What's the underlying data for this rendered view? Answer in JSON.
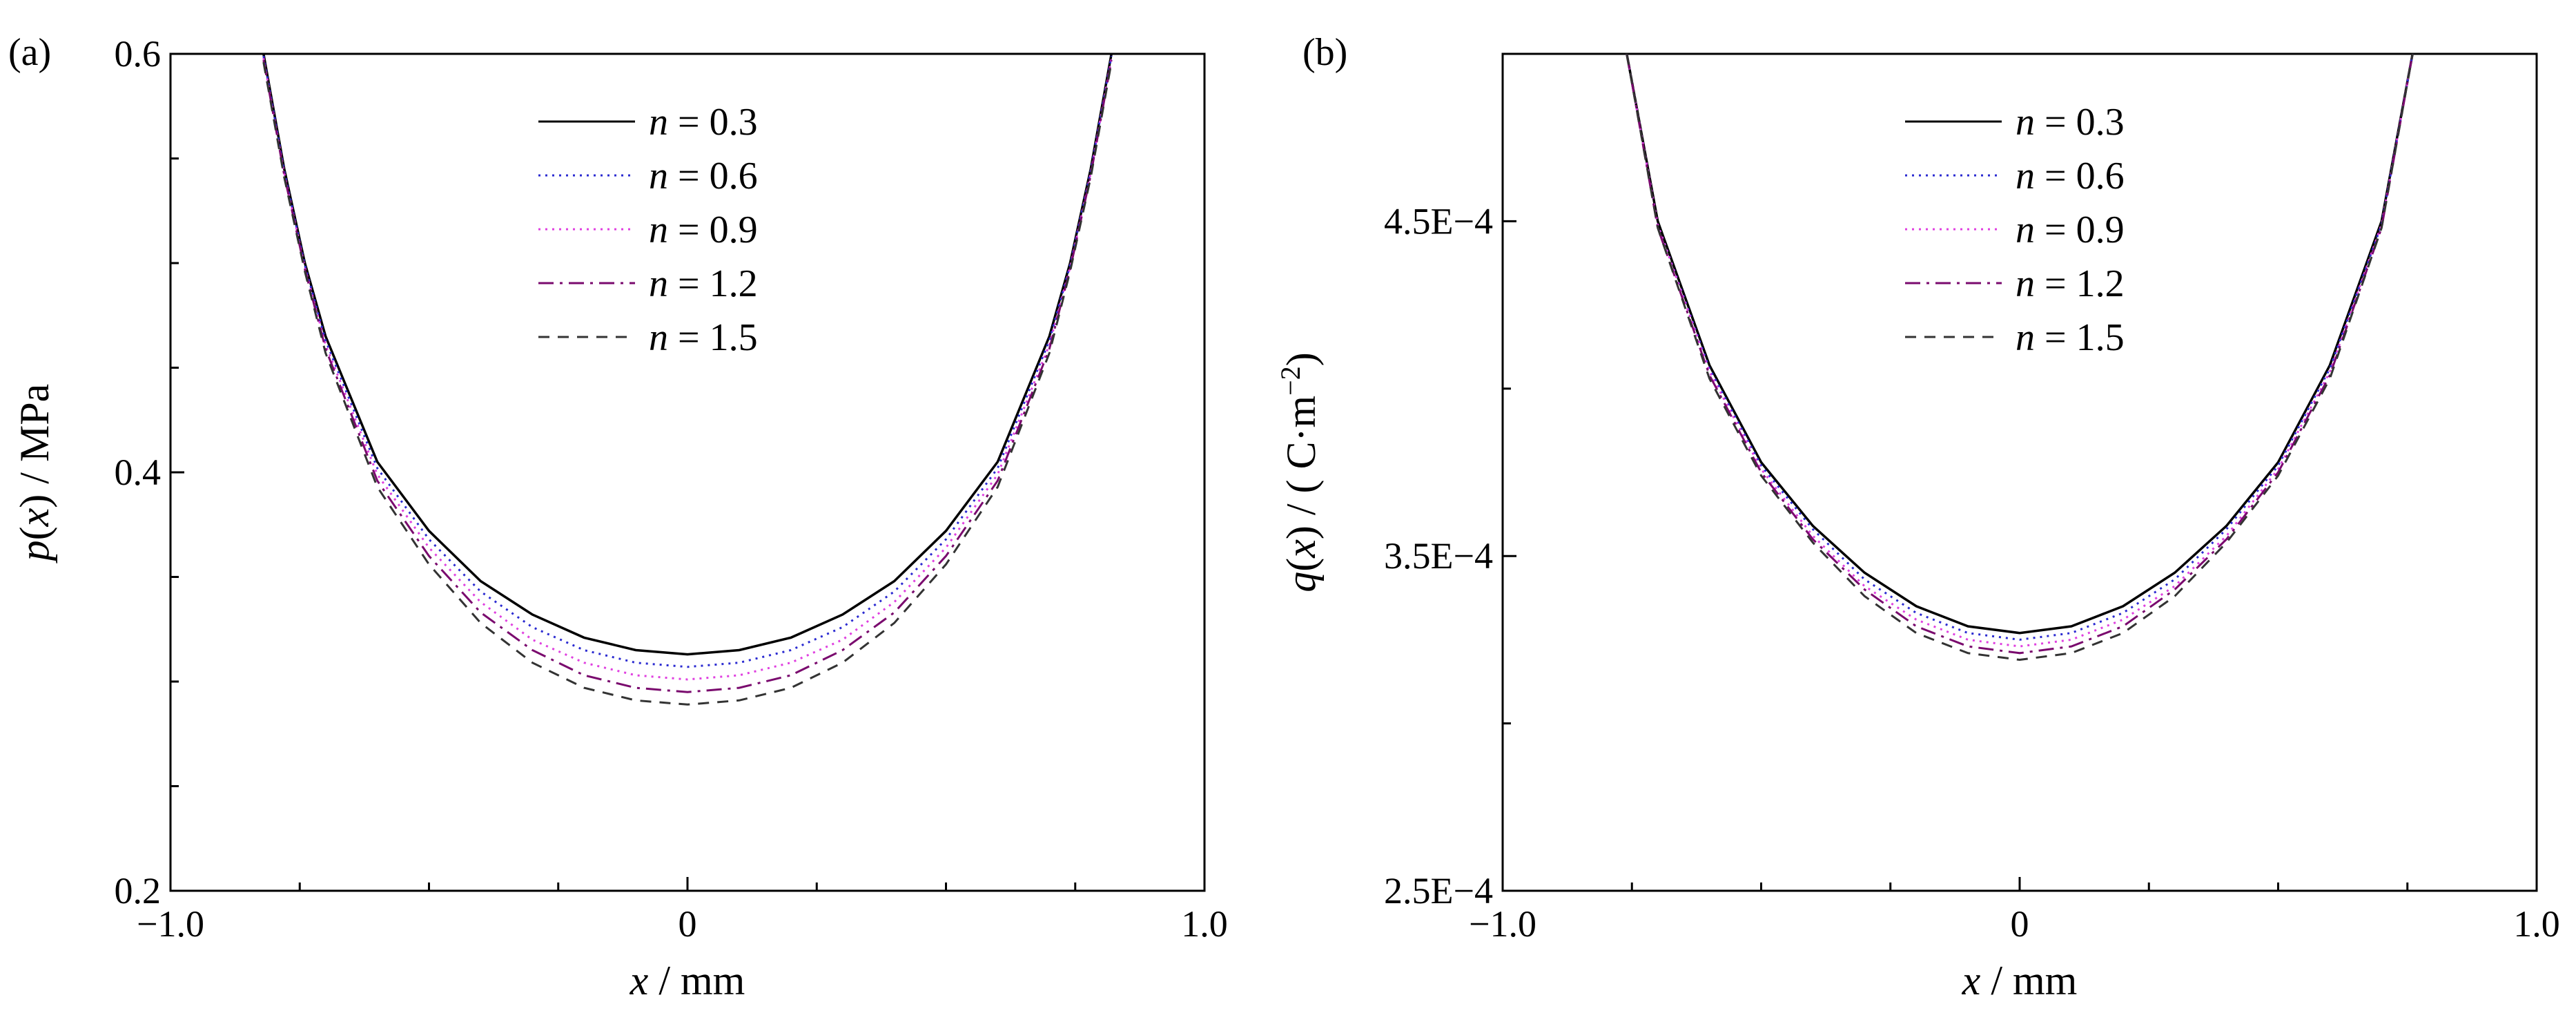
{
  "chart_data": [
    {
      "type": "line",
      "panel_label": "(a)",
      "xlabel": "x / mm",
      "ylabel": "p(x) / MPa",
      "xlim": [
        -1.0,
        1.0
      ],
      "ylim": [
        0.2,
        0.6
      ],
      "x_ticks": [
        "−1.0",
        "0",
        "1.0"
      ],
      "y_ticks": [
        "0.2",
        "0.4",
        "0.6"
      ],
      "grid": false,
      "legend_position": "top-center",
      "x": [
        -0.82,
        -0.78,
        -0.74,
        -0.7,
        -0.6,
        -0.5,
        -0.4,
        -0.3,
        -0.2,
        -0.1,
        0.0,
        0.1,
        0.2,
        0.3,
        0.4,
        0.5,
        0.6,
        0.7,
        0.74,
        0.78,
        0.82
      ],
      "series": [
        {
          "name": "n = 0.3",
          "values": [
            0.6,
            0.545,
            0.5,
            0.465,
            0.405,
            0.372,
            0.348,
            0.332,
            0.321,
            0.315,
            0.313,
            0.315,
            0.321,
            0.332,
            0.348,
            0.372,
            0.405,
            0.465,
            0.5,
            0.545,
            0.6
          ]
        },
        {
          "name": "n = 0.6",
          "values": [
            0.599,
            0.544,
            0.499,
            0.463,
            0.402,
            0.368,
            0.343,
            0.326,
            0.315,
            0.309,
            0.307,
            0.309,
            0.315,
            0.326,
            0.343,
            0.368,
            0.402,
            0.463,
            0.499,
            0.544,
            0.599
          ]
        },
        {
          "name": "n = 0.9",
          "values": [
            0.598,
            0.543,
            0.498,
            0.461,
            0.399,
            0.364,
            0.338,
            0.32,
            0.309,
            0.303,
            0.301,
            0.303,
            0.309,
            0.32,
            0.338,
            0.364,
            0.399,
            0.461,
            0.498,
            0.543,
            0.598
          ]
        },
        {
          "name": "n = 1.2",
          "values": [
            0.597,
            0.542,
            0.497,
            0.459,
            0.396,
            0.36,
            0.333,
            0.315,
            0.303,
            0.297,
            0.295,
            0.297,
            0.303,
            0.315,
            0.333,
            0.36,
            0.396,
            0.459,
            0.497,
            0.542,
            0.597
          ]
        },
        {
          "name": "n = 1.5",
          "values": [
            0.596,
            0.541,
            0.496,
            0.457,
            0.393,
            0.356,
            0.328,
            0.309,
            0.297,
            0.291,
            0.289,
            0.291,
            0.297,
            0.309,
            0.328,
            0.356,
            0.393,
            0.457,
            0.496,
            0.541,
            0.596
          ]
        }
      ]
    },
    {
      "type": "line",
      "panel_label": "(b)",
      "xlabel": "x / mm",
      "ylabel": "q(x) / ( C·m−2)",
      "xlim": [
        -1.0,
        1.0
      ],
      "ylim": [
        0.00025,
        0.0005
      ],
      "x_ticks": [
        "−1.0",
        "0",
        "1.0"
      ],
      "y_ticks": [
        "2.5E−4",
        "3.5E−4",
        "4.5E−4"
      ],
      "grid": false,
      "legend_position": "top-center",
      "x": [
        -0.76,
        -0.7,
        -0.6,
        -0.5,
        -0.4,
        -0.3,
        -0.2,
        -0.1,
        0.0,
        0.1,
        0.2,
        0.3,
        0.4,
        0.5,
        0.6,
        0.7,
        0.76
      ],
      "series": [
        {
          "name": "n = 0.3",
          "values": [
            0.0005,
            0.00045,
            0.000407,
            0.000378,
            0.000359,
            0.000345,
            0.000335,
            0.000329,
            0.000327,
            0.000329,
            0.000335,
            0.000345,
            0.000359,
            0.000378,
            0.000407,
            0.00045,
            0.0005
          ]
        },
        {
          "name": "n = 0.6",
          "values": [
            0.0005,
            0.000449,
            0.000406,
            0.000377,
            0.000358,
            0.000343,
            0.000333,
            0.000327,
            0.000325,
            0.000327,
            0.000333,
            0.000343,
            0.000358,
            0.000377,
            0.000406,
            0.000449,
            0.0005
          ]
        },
        {
          "name": "n = 0.9",
          "values": [
            0.0005,
            0.000449,
            0.000405,
            0.000376,
            0.000356,
            0.000341,
            0.000331,
            0.000325,
            0.000323,
            0.000325,
            0.000331,
            0.000341,
            0.000356,
            0.000376,
            0.000405,
            0.000449,
            0.0005
          ]
        },
        {
          "name": "n = 1.2",
          "values": [
            0.0005,
            0.000448,
            0.000404,
            0.000375,
            0.000355,
            0.00034,
            0.000329,
            0.000323,
            0.000321,
            0.000323,
            0.000329,
            0.00034,
            0.000355,
            0.000375,
            0.000404,
            0.000448,
            0.0005
          ]
        },
        {
          "name": "n = 1.5",
          "values": [
            0.0005,
            0.000448,
            0.000403,
            0.000374,
            0.000354,
            0.000338,
            0.000327,
            0.000321,
            0.000319,
            0.000321,
            0.000327,
            0.000338,
            0.000354,
            0.000374,
            0.000403,
            0.000448,
            0.0005
          ]
        }
      ]
    }
  ],
  "series_styles": [
    {
      "color": "#000000",
      "dash": "solid"
    },
    {
      "color": "#2b2bd1",
      "dash": "dot"
    },
    {
      "color": "#e040e0",
      "dash": "dot"
    },
    {
      "color": "#7a0a6e",
      "dash": "dashdot"
    },
    {
      "color": "#333333",
      "dash": "dash"
    }
  ]
}
